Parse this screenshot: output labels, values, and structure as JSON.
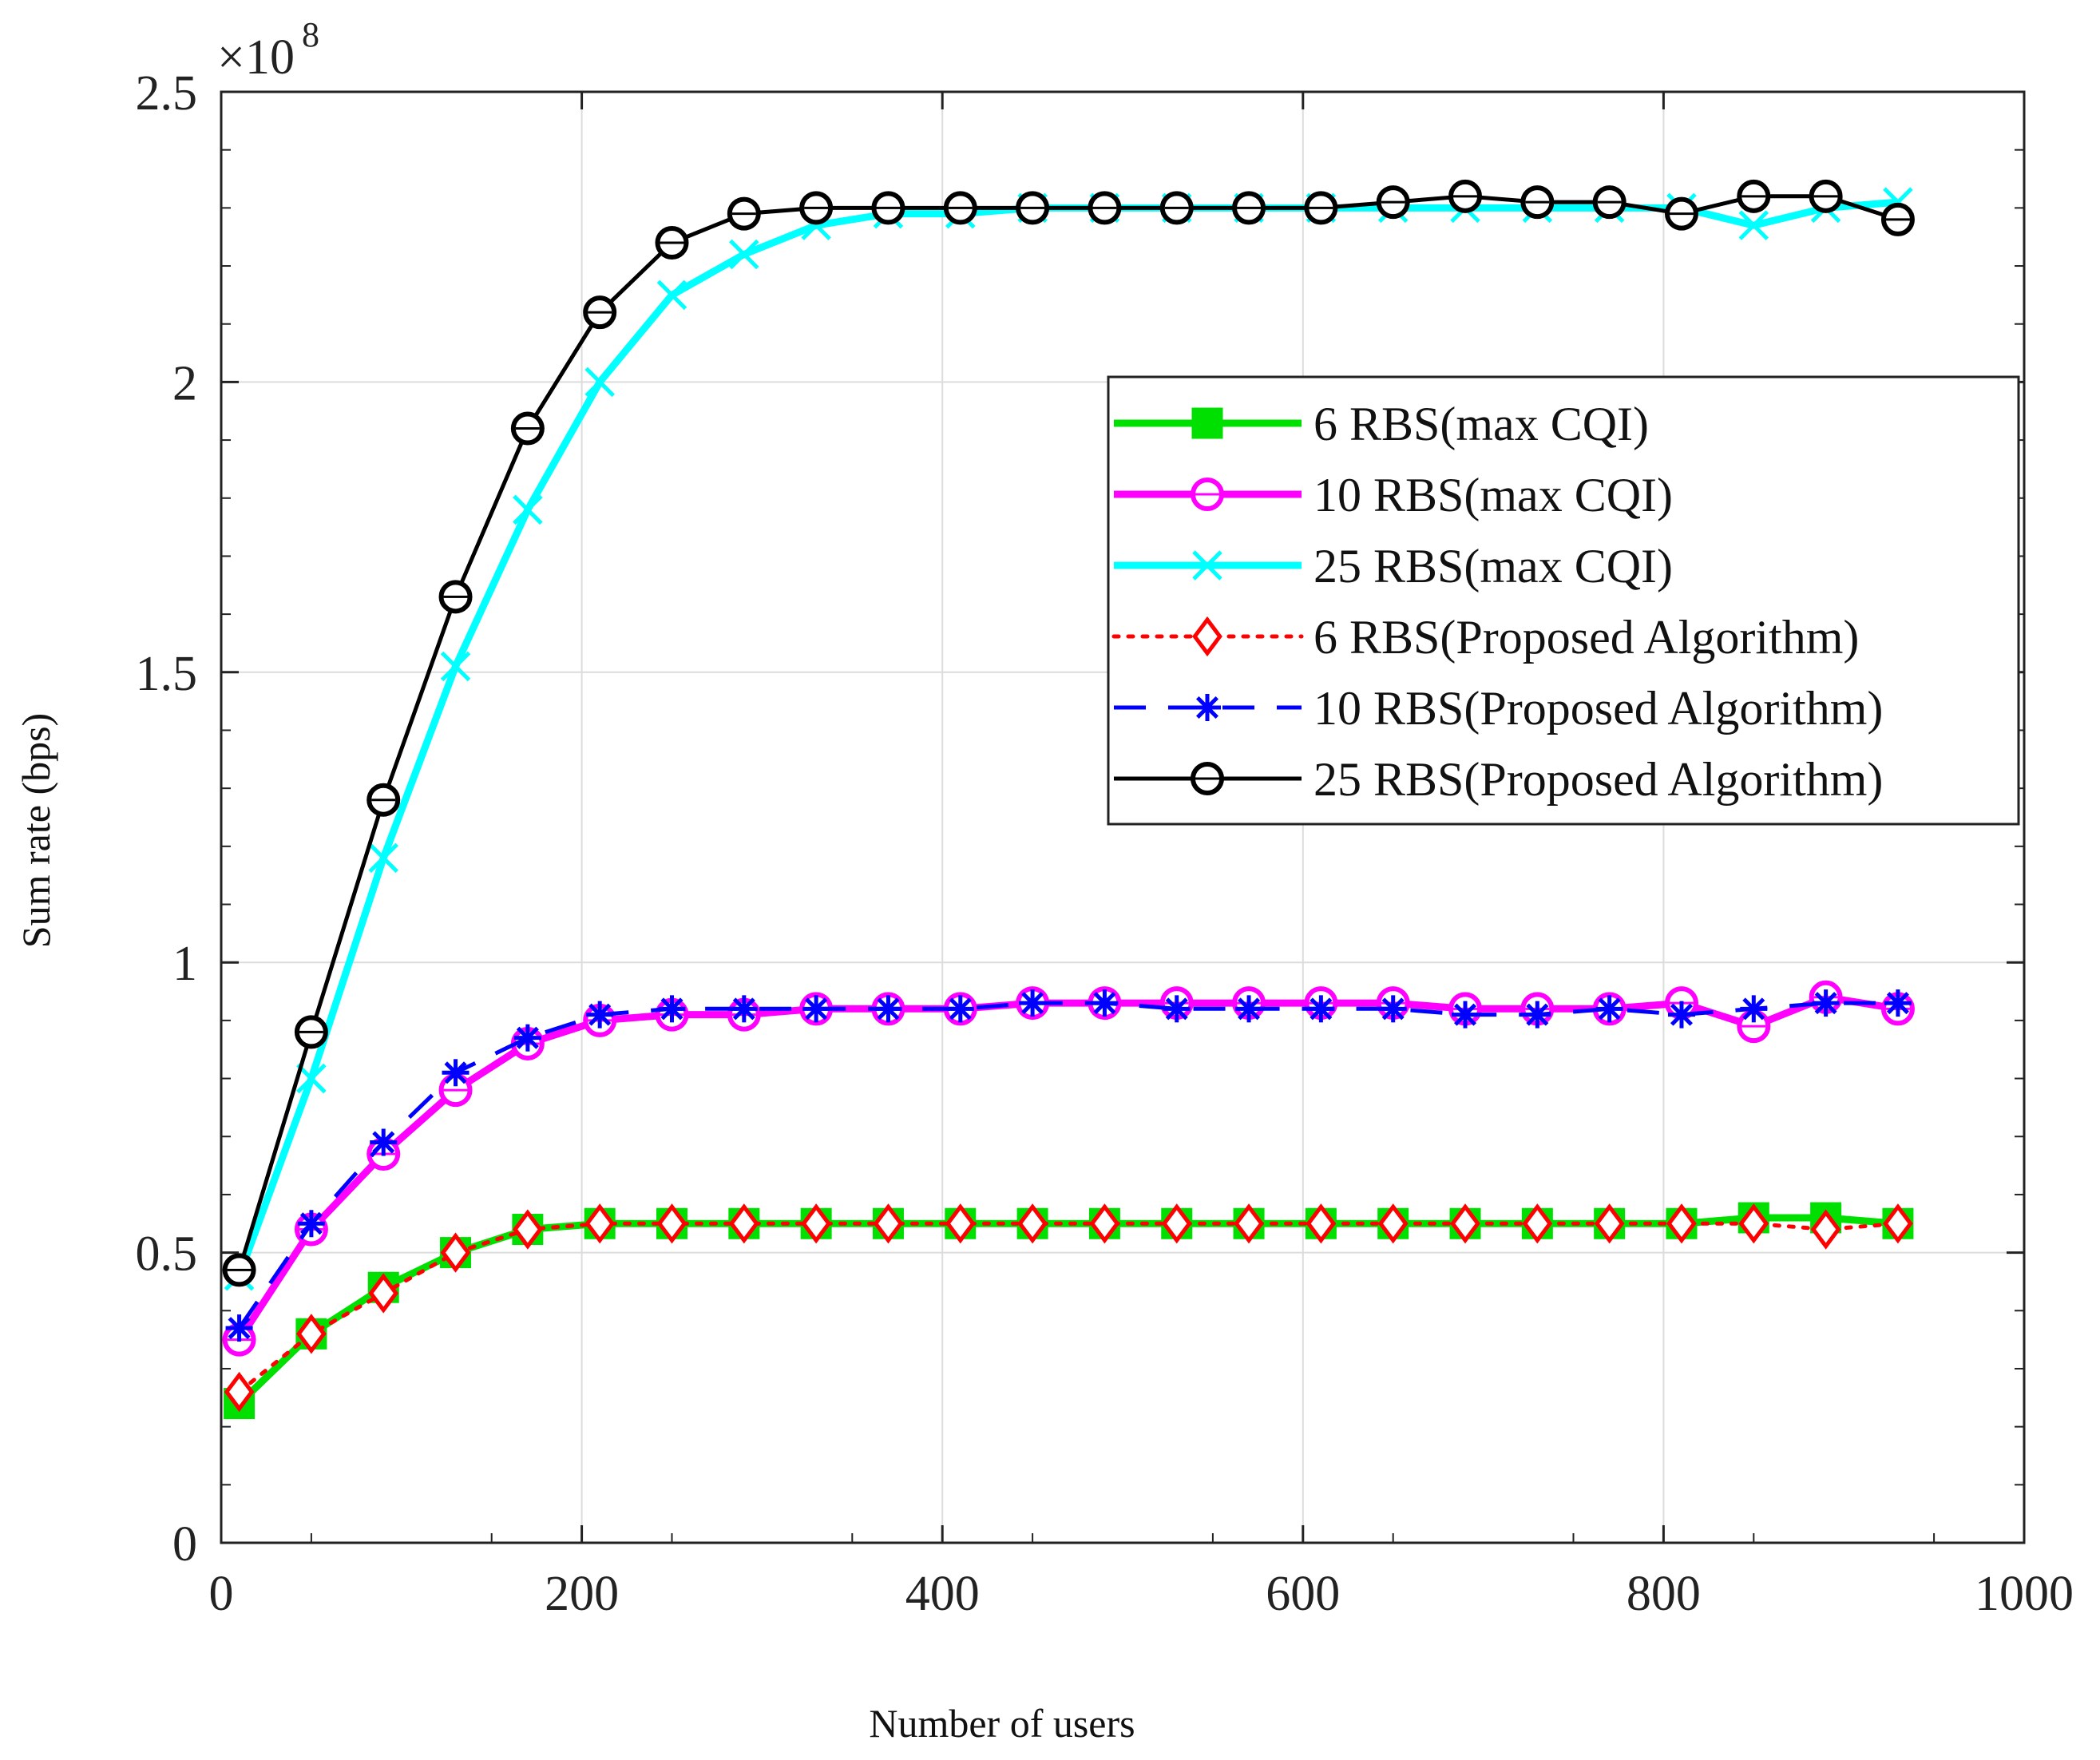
{
  "chart_data": {
    "type": "line",
    "title": "",
    "xlabel": "Number of users",
    "ylabel": "Sum rate (bps)",
    "xlim": [
      0,
      1000
    ],
    "ylim": [
      0,
      2.5
    ],
    "y_multiplier_base": "×10",
    "y_multiplier_exp": "8",
    "xticks": [
      "0",
      "200",
      "400",
      "600",
      "800",
      "1000"
    ],
    "yticks": [
      "0",
      "0.5",
      "1",
      "1.5",
      "2",
      "2.5"
    ],
    "grid": true,
    "legend_position": "upper-right",
    "x": [
      10,
      50,
      90,
      130,
      170,
      210,
      250,
      290,
      330,
      370,
      410,
      450,
      490,
      530,
      570,
      610,
      650,
      690,
      730,
      770,
      810,
      850,
      890,
      930
    ],
    "series": [
      {
        "name": "6 RBS(max CQI)",
        "color": "#00e000",
        "style": "solid",
        "width": 9,
        "marker": "square",
        "values": [
          0.24,
          0.36,
          0.44,
          0.5,
          0.54,
          0.55,
          0.55,
          0.55,
          0.55,
          0.55,
          0.55,
          0.55,
          0.55,
          0.55,
          0.55,
          0.55,
          0.55,
          0.55,
          0.55,
          0.55,
          0.55,
          0.56,
          0.56,
          0.55
        ]
      },
      {
        "name": "10 RBS(max CQI)",
        "color": "#ff00ff",
        "style": "solid",
        "width": 9,
        "marker": "circle",
        "values": [
          0.35,
          0.54,
          0.67,
          0.78,
          0.86,
          0.9,
          0.91,
          0.91,
          0.92,
          0.92,
          0.92,
          0.93,
          0.93,
          0.93,
          0.93,
          0.93,
          0.93,
          0.92,
          0.92,
          0.92,
          0.93,
          0.89,
          0.94,
          0.92
        ]
      },
      {
        "name": "25 RBS(max CQI)",
        "color": "#00ffff",
        "style": "solid",
        "width": 9,
        "marker": "x",
        "values": [
          0.46,
          0.8,
          1.18,
          1.51,
          1.78,
          2.0,
          2.15,
          2.22,
          2.27,
          2.29,
          2.29,
          2.3,
          2.3,
          2.3,
          2.3,
          2.3,
          2.3,
          2.3,
          2.3,
          2.3,
          2.3,
          2.27,
          2.3,
          2.31
        ]
      },
      {
        "name": "6 RBS(Proposed Algorithm)",
        "color": "#ff0000",
        "style": "dotted",
        "width": 5,
        "marker": "diamond",
        "values": [
          0.26,
          0.36,
          0.43,
          0.5,
          0.54,
          0.55,
          0.55,
          0.55,
          0.55,
          0.55,
          0.55,
          0.55,
          0.55,
          0.55,
          0.55,
          0.55,
          0.55,
          0.55,
          0.55,
          0.55,
          0.55,
          0.55,
          0.54,
          0.55
        ]
      },
      {
        "name": "10 RBS(Proposed Algorithm)",
        "color": "#0000ff",
        "style": "dashed",
        "width": 5,
        "marker": "star",
        "values": [
          0.37,
          0.55,
          0.69,
          0.81,
          0.87,
          0.91,
          0.92,
          0.92,
          0.92,
          0.92,
          0.92,
          0.93,
          0.93,
          0.92,
          0.92,
          0.92,
          0.92,
          0.91,
          0.91,
          0.92,
          0.91,
          0.92,
          0.93,
          0.93
        ]
      },
      {
        "name": "25 RBS(Proposed Algorithm)",
        "color": "#000000",
        "style": "solid",
        "width": 5,
        "marker": "circle-open",
        "values": [
          0.47,
          0.88,
          1.28,
          1.63,
          1.92,
          2.12,
          2.24,
          2.29,
          2.3,
          2.3,
          2.3,
          2.3,
          2.3,
          2.3,
          2.3,
          2.3,
          2.31,
          2.32,
          2.31,
          2.31,
          2.29,
          2.32,
          2.32,
          2.28
        ]
      }
    ]
  }
}
